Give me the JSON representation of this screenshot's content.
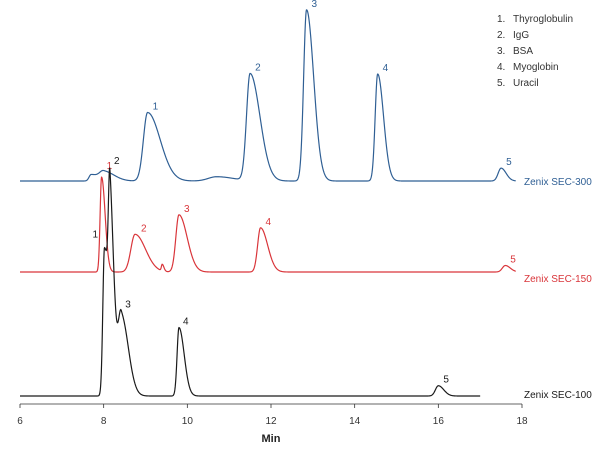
{
  "chart_data": {
    "type": "line",
    "xlabel": "Min",
    "xlim": [
      6,
      18
    ],
    "x_ticks": [
      "6",
      "8",
      "10",
      "12",
      "14",
      "16",
      "18"
    ],
    "legend": {
      "placement": "top-right",
      "items": [
        {
          "num": "1.",
          "label": "Thyroglobulin"
        },
        {
          "num": "2.",
          "label": "IgG"
        },
        {
          "num": "3.",
          "label": "BSA"
        },
        {
          "num": "4.",
          "label": "Myoglobin"
        },
        {
          "num": "5.",
          "label": "Uracil"
        }
      ]
    },
    "series": [
      {
        "name": "Zenix SEC-300",
        "color": "#2f5f94",
        "x_range": [
          6.0,
          17.85
        ],
        "peaks": [
          {
            "rt": 7.7,
            "height": 0.03,
            "width": 0.05,
            "tail": 0.1
          },
          {
            "rt": 8.0,
            "height": 0.045,
            "width": 0.1,
            "tail": 0.15
          },
          {
            "rt": 9.05,
            "height": 0.32,
            "width": 0.1,
            "tail": 0.2,
            "label": "1"
          },
          {
            "rt": 10.7,
            "height": 0.02,
            "width": 0.2,
            "tail": 0.2
          },
          {
            "rt": 11.5,
            "height": 0.5,
            "width": 0.085,
            "tail": 0.15,
            "label": "2"
          },
          {
            "rt": 12.85,
            "height": 0.8,
            "width": 0.07,
            "tail": 0.1,
            "label": "3"
          },
          {
            "rt": 14.55,
            "height": 0.5,
            "width": 0.06,
            "tail": 0.08,
            "label": "4"
          },
          {
            "rt": 17.5,
            "height": 0.06,
            "width": 0.07,
            "tail": 0.05,
            "label": "5"
          }
        ]
      },
      {
        "name": "Zenix SEC-150",
        "color": "#d9353a",
        "x_range": [
          6.0,
          17.85
        ],
        "peaks": [
          {
            "rt": 7.95,
            "height": 0.73,
            "width": 0.035,
            "tail": 0.05,
            "label": "1"
          },
          {
            "rt": 8.75,
            "height": 0.29,
            "width": 0.1,
            "tail": 0.15,
            "label": "2"
          },
          {
            "rt": 9.4,
            "height": 0.05,
            "width": 0.02,
            "tail": 0.02
          },
          {
            "rt": 9.8,
            "height": 0.44,
            "width": 0.075,
            "tail": 0.12,
            "label": "3"
          },
          {
            "rt": 11.75,
            "height": 0.34,
            "width": 0.07,
            "tail": 0.1,
            "label": "4"
          },
          {
            "rt": 17.6,
            "height": 0.05,
            "width": 0.07,
            "tail": 0.05,
            "label": "5"
          }
        ]
      },
      {
        "name": "Zenix SEC-100",
        "color": "#1a1a1a",
        "x_range": [
          6.0,
          17.0
        ],
        "peaks": [
          {
            "rt": 8.02,
            "height": 0.65,
            "width": 0.04,
            "tail": 0.08,
            "label": "1"
          },
          {
            "rt": 8.15,
            "height": 0.63,
            "width": 0.035,
            "tail": 0.07,
            "label": "2"
          },
          {
            "rt": 8.42,
            "height": 0.35,
            "width": 0.07,
            "tail": 0.1,
            "label": "3"
          },
          {
            "rt": 9.8,
            "height": 0.3,
            "width": 0.045,
            "tail": 0.08,
            "label": "4"
          },
          {
            "rt": 16.0,
            "height": 0.045,
            "width": 0.07,
            "tail": 0.06,
            "label": "5"
          }
        ]
      }
    ]
  }
}
